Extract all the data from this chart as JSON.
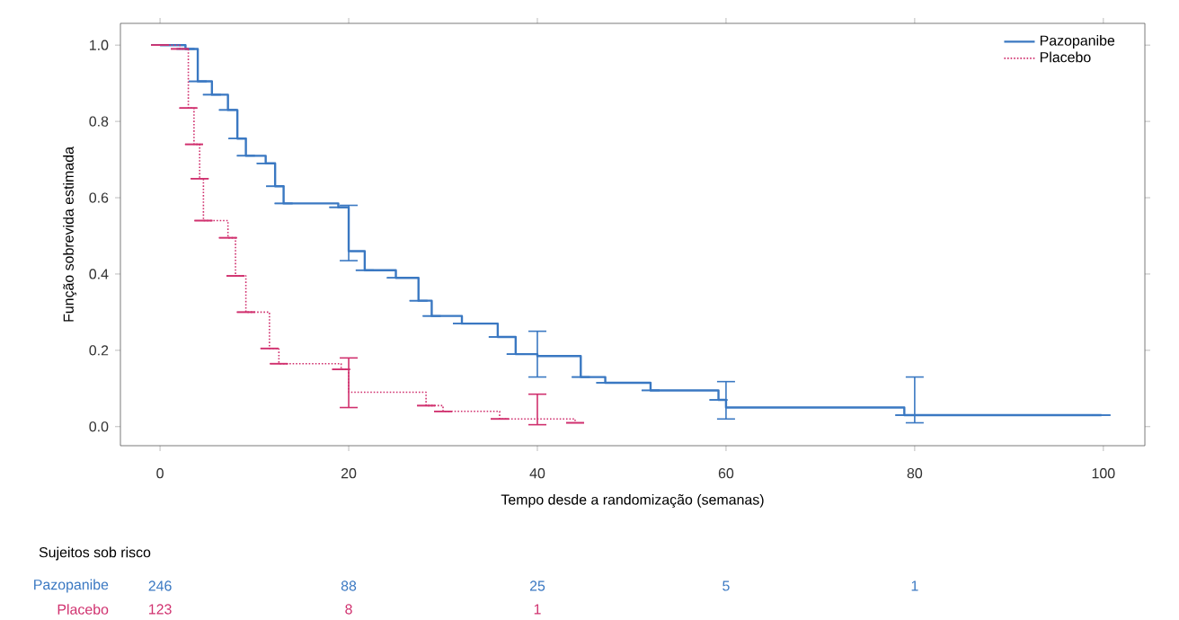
{
  "chart_data": {
    "type": "step",
    "xlabel": "Tempo desde a randomização (semanas)",
    "ylabel": "Função sobrevida estimada",
    "xlim": [
      -4.2,
      104.4
    ],
    "ylim": [
      -0.05,
      1.057
    ],
    "xticks": [
      0,
      20,
      40,
      60,
      80,
      100
    ],
    "yticks": [
      {
        "value": 0,
        "label": "0.0"
      },
      {
        "value": 0.2,
        "label": "0.2"
      },
      {
        "value": 0.4,
        "label": "0.4"
      },
      {
        "value": 0.6,
        "label": "0.6"
      },
      {
        "value": 0.8,
        "label": "0.8"
      },
      {
        "value": 1,
        "label": "1.0"
      }
    ],
    "legend": "top right",
    "marker": "none",
    "series": [
      {
        "name": "Pazopanibe",
        "color": "#3a78c2",
        "line_style": "solid",
        "x": [
          0,
          2.7,
          4,
          5.5,
          7.2,
          8.2,
          9.1,
          11.2,
          12.2,
          13.1,
          18.9,
          20,
          21.7,
          25,
          27.4,
          28.8,
          32,
          35.8,
          37.7,
          40,
          44.6,
          47.2,
          52,
          59.2,
          60,
          78.9,
          80,
          99.8
        ],
        "values": [
          1.0,
          0.99,
          0.905,
          0.87,
          0.83,
          0.755,
          0.71,
          0.69,
          0.63,
          0.585,
          0.575,
          0.46,
          0.41,
          0.39,
          0.33,
          0.29,
          0.27,
          0.235,
          0.19,
          0.185,
          0.13,
          0.115,
          0.095,
          0.07,
          0.05,
          0.03,
          0.03,
          0.03
        ],
        "errors": [
          null,
          null,
          null,
          null,
          null,
          null,
          null,
          null,
          null,
          null,
          null,
          [
            0.435,
            0.58
          ],
          null,
          null,
          null,
          null,
          null,
          null,
          null,
          [
            0.13,
            0.25
          ],
          null,
          null,
          null,
          null,
          [
            0.02,
            0.118
          ],
          null,
          [
            0.01,
            0.13
          ],
          null
        ]
      },
      {
        "name": "Placebo",
        "color": "#d0306e",
        "line_style": "dotted",
        "x": [
          0,
          2.1,
          3,
          3.6,
          4.2,
          4.6,
          7.2,
          8,
          9.1,
          11.6,
          12.6,
          19.2,
          20,
          28.2,
          30,
          36,
          40,
          44
        ],
        "values": [
          1.0,
          0.99,
          0.835,
          0.74,
          0.65,
          0.54,
          0.495,
          0.395,
          0.3,
          0.205,
          0.165,
          0.15,
          0.09,
          0.055,
          0.04,
          0.02,
          0.02,
          0.01
        ],
        "errors": [
          null,
          null,
          null,
          null,
          null,
          null,
          null,
          null,
          null,
          null,
          null,
          null,
          [
            0.05,
            0.18
          ],
          null,
          null,
          null,
          [
            0.005,
            0.085
          ],
          null
        ]
      }
    ],
    "annotations": [
      "Sujeitos sob risco",
      "246",
      "88",
      "25",
      "5",
      "1",
      "123",
      "8",
      "1"
    ]
  }
}
